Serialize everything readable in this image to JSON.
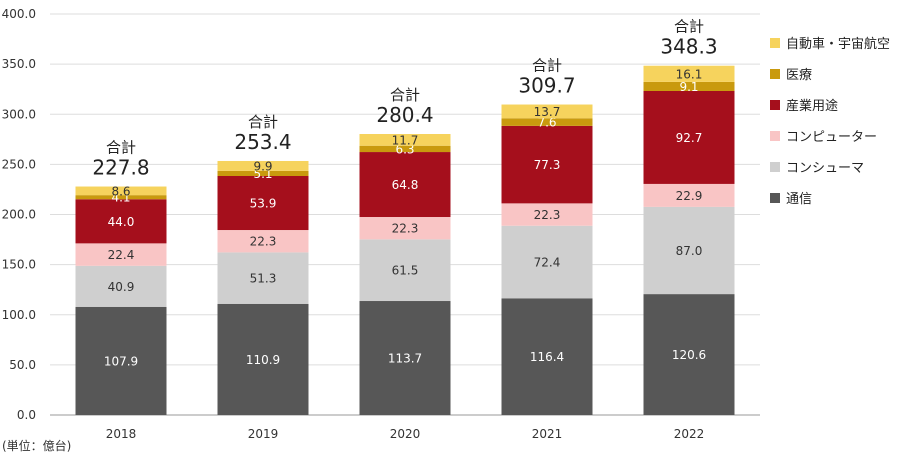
{
  "chart_data": {
    "type": "bar",
    "stacked": true,
    "categories": [
      "2018",
      "2019",
      "2020",
      "2021",
      "2022"
    ],
    "series": [
      {
        "name": "通信",
        "color": "#575757",
        "label_color": "#ffffff",
        "values": [
          107.9,
          110.9,
          113.7,
          116.4,
          120.6
        ]
      },
      {
        "name": "コンシューマ",
        "color": "#cfcfcf",
        "label_color": "#333333",
        "values": [
          40.9,
          51.3,
          61.5,
          72.4,
          87.0
        ]
      },
      {
        "name": "コンピューター",
        "color": "#f9c5c5",
        "label_color": "#333333",
        "values": [
          22.4,
          22.3,
          22.3,
          22.3,
          22.9
        ]
      },
      {
        "name": "産業用途",
        "color": "#a50f1c",
        "label_color": "#ffffff",
        "values": [
          44.0,
          53.9,
          64.8,
          77.3,
          92.7
        ]
      },
      {
        "name": "医療",
        "color": "#c99a0e",
        "label_color": "#ffffff",
        "values": [
          4.1,
          5.1,
          6.3,
          7.6,
          9.1
        ]
      },
      {
        "name": "自動車・宇宙航空",
        "color": "#f6d35d",
        "label_color": "#333333",
        "values": [
          8.6,
          9.9,
          11.7,
          13.7,
          16.1
        ]
      }
    ],
    "value_labels": {
      "通信": [
        "107.9",
        "110.9",
        "113.7",
        "116.4",
        "120.6"
      ],
      "コンシューマ": [
        "40.9",
        "51.3",
        "61.5",
        "72.4",
        "87.0"
      ],
      "コンピューター": [
        "22.4",
        "22.3",
        "22.3",
        "22.3",
        "22.9"
      ],
      "産業用途": [
        "44.0",
        "53.9",
        "64.8",
        "77.3",
        "92.7"
      ],
      "医療": [
        "4.1",
        "5.1",
        "6.3",
        "7.6",
        "9.1"
      ],
      "自動車・宇宙航空": [
        "8.6",
        "9.9",
        "11.7",
        "13.7",
        "16.1"
      ]
    },
    "totals": [
      "227.8",
      "253.4",
      "280.4",
      "309.7",
      "348.3"
    ],
    "total_label": "合計",
    "ylim": [
      0,
      400
    ],
    "yticks": [
      "0.0",
      "50.0",
      "100.0",
      "150.0",
      "200.0",
      "250.0",
      "300.0",
      "350.0",
      "400.0"
    ],
    "grid": true,
    "legend_position": "right",
    "legend_order": [
      "自動車・宇宙航空",
      "医療",
      "産業用途",
      "コンピューター",
      "コンシューマ",
      "通信"
    ],
    "unit_label": "(単位：億台)"
  }
}
